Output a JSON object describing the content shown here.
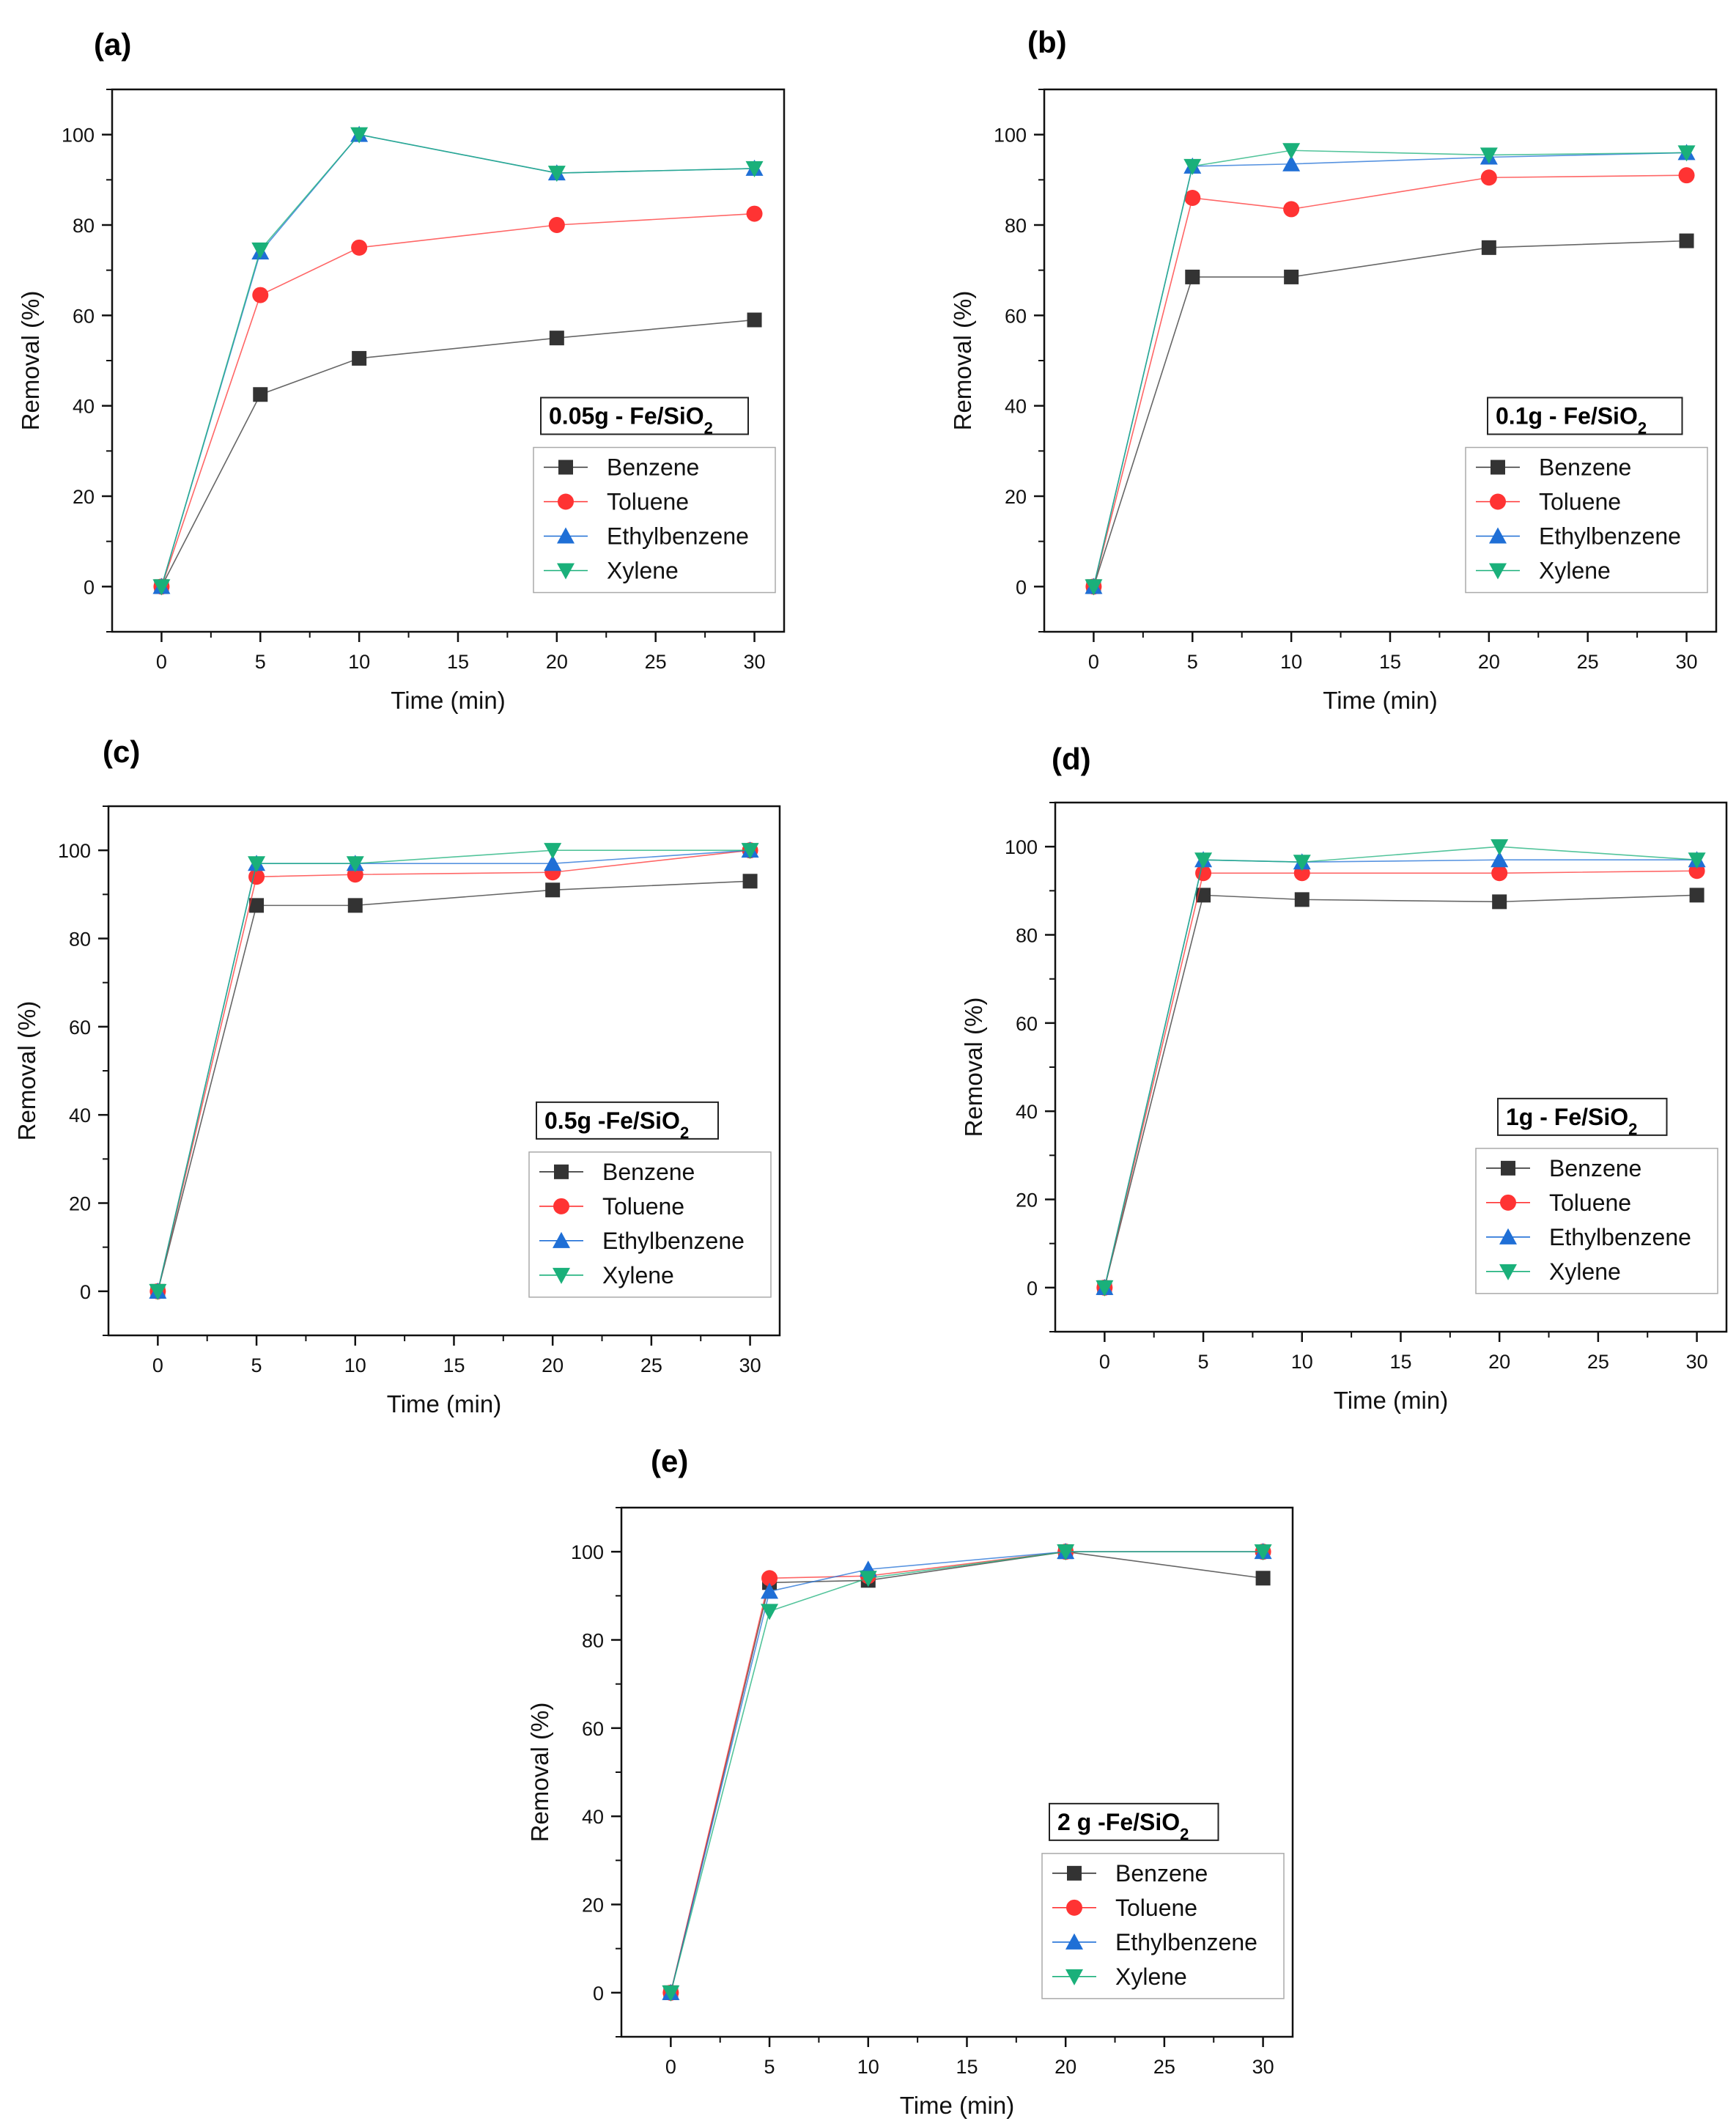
{
  "figure": {
    "series_colors": {
      "Benzene": "#333333",
      "Toluene": "#ff3333",
      "Ethylbenzene": "#1f6fd6",
      "Xylene": "#1ab07a"
    },
    "series_markers": {
      "Benzene": "square",
      "Toluene": "circle",
      "Ethylbenzene": "triangle-up",
      "Xylene": "triangle-down"
    }
  },
  "chart_data": [
    {
      "panel_label": "(a)",
      "type": "line",
      "title_prefix": "0.05g - Fe/SiO",
      "title_subscript": "2",
      "xlabel": "Time (min)",
      "ylabel": "Removal (%)",
      "xlim": [
        -2.5,
        31.5
      ],
      "ylim": [
        -10,
        110
      ],
      "xticks": [
        0,
        5,
        10,
        15,
        20,
        25,
        30
      ],
      "yticks": [
        0,
        20,
        40,
        60,
        80,
        100
      ],
      "x": [
        0,
        5,
        10,
        20,
        30
      ],
      "series": [
        {
          "name": "Benzene",
          "values": [
            0,
            42.5,
            50.5,
            55,
            59
          ]
        },
        {
          "name": "Toluene",
          "values": [
            0,
            64.5,
            75,
            80,
            82.5
          ]
        },
        {
          "name": "Ethylbenzene",
          "values": [
            0,
            74,
            100,
            91.5,
            92.5
          ]
        },
        {
          "name": "Xylene",
          "values": [
            0,
            74.5,
            100,
            91.5,
            92.5
          ]
        }
      ],
      "legend": [
        "Benzene",
        "Toluene",
        "Ethylbenzene",
        "Xylene"
      ]
    },
    {
      "panel_label": "(b)",
      "type": "line",
      "title_prefix": "0.1g - Fe/SiO",
      "title_subscript": "2",
      "xlabel": "Time (min)",
      "ylabel": "Removal (%)",
      "xlim": [
        -2.5,
        31.5
      ],
      "ylim": [
        -10,
        110
      ],
      "xticks": [
        0,
        5,
        10,
        15,
        20,
        25,
        30
      ],
      "yticks": [
        0,
        20,
        40,
        60,
        80,
        100
      ],
      "x": [
        0,
        5,
        10,
        20,
        30
      ],
      "series": [
        {
          "name": "Benzene",
          "values": [
            0,
            68.5,
            68.5,
            75,
            76.5
          ]
        },
        {
          "name": "Toluene",
          "values": [
            0,
            86,
            83.5,
            90.5,
            91
          ]
        },
        {
          "name": "Ethylbenzene",
          "values": [
            0,
            93,
            93.5,
            95,
            96
          ]
        },
        {
          "name": "Xylene",
          "values": [
            0,
            93,
            96.5,
            95.5,
            96
          ]
        }
      ],
      "legend": [
        "Benzene",
        "Toluene",
        "Ethylbenzene",
        "Xylene"
      ]
    },
    {
      "panel_label": "(c)",
      "type": "line",
      "title_prefix": "0.5g -Fe/SiO",
      "title_subscript": "2",
      "xlabel": "Time (min)",
      "ylabel": "Removal (%)",
      "xlim": [
        -2.5,
        31.5
      ],
      "ylim": [
        -10,
        110
      ],
      "xticks": [
        0,
        5,
        10,
        15,
        20,
        25,
        30
      ],
      "yticks": [
        0,
        20,
        40,
        60,
        80,
        100
      ],
      "x": [
        0,
        5,
        10,
        20,
        30
      ],
      "series": [
        {
          "name": "Benzene",
          "values": [
            0,
            87.5,
            87.5,
            91,
            93
          ]
        },
        {
          "name": "Toluene",
          "values": [
            0,
            94,
            94.5,
            95,
            100
          ]
        },
        {
          "name": "Ethylbenzene",
          "values": [
            0,
            97,
            97,
            97,
            100
          ]
        },
        {
          "name": "Xylene",
          "values": [
            0,
            97,
            97,
            100,
            100
          ]
        }
      ],
      "legend": [
        "Benzene",
        "Toluene",
        "Ethylbenzene",
        "Xylene"
      ]
    },
    {
      "panel_label": "(d)",
      "type": "line",
      "title_prefix": "1g - Fe/SiO",
      "title_subscript": "2",
      "xlabel": "Time (min)",
      "ylabel": "Removal (%)",
      "xlim": [
        -2.5,
        31.5
      ],
      "ylim": [
        -10,
        110
      ],
      "xticks": [
        0,
        5,
        10,
        15,
        20,
        25,
        30
      ],
      "yticks": [
        0,
        20,
        40,
        60,
        80,
        100
      ],
      "x": [
        0,
        5,
        10,
        20,
        30
      ],
      "series": [
        {
          "name": "Benzene",
          "values": [
            0,
            89,
            88,
            87.5,
            89
          ]
        },
        {
          "name": "Toluene",
          "values": [
            0,
            94,
            94,
            94,
            94.5
          ]
        },
        {
          "name": "Ethylbenzene",
          "values": [
            0,
            97,
            96.5,
            97,
            97
          ]
        },
        {
          "name": "Xylene",
          "values": [
            0,
            97,
            96.5,
            100,
            97
          ]
        }
      ],
      "legend": [
        "Benzene",
        "Toluene",
        "Ethylbenzene",
        "Xylene"
      ]
    },
    {
      "panel_label": "(e)",
      "type": "line",
      "title_prefix": "2 g -Fe/SiO",
      "title_subscript": "2",
      "xlabel": "Time (min)",
      "ylabel": "Removal (%)",
      "xlim": [
        -2.5,
        31.5
      ],
      "ylim": [
        -10,
        110
      ],
      "xticks": [
        0,
        5,
        10,
        15,
        20,
        25,
        30
      ],
      "yticks": [
        0,
        20,
        40,
        60,
        80,
        100
      ],
      "x": [
        0,
        5,
        10,
        20,
        30
      ],
      "series": [
        {
          "name": "Benzene",
          "values": [
            0,
            93,
            93.5,
            100,
            94
          ]
        },
        {
          "name": "Toluene",
          "values": [
            0,
            94,
            94.5,
            100,
            100
          ]
        },
        {
          "name": "Ethylbenzene",
          "values": [
            0,
            91,
            96,
            100,
            100
          ]
        },
        {
          "name": "Xylene",
          "values": [
            0,
            86.5,
            94,
            100,
            100
          ]
        }
      ],
      "legend": [
        "Benzene",
        "Toluene",
        "Ethylbenzene",
        "Xylene"
      ]
    }
  ]
}
